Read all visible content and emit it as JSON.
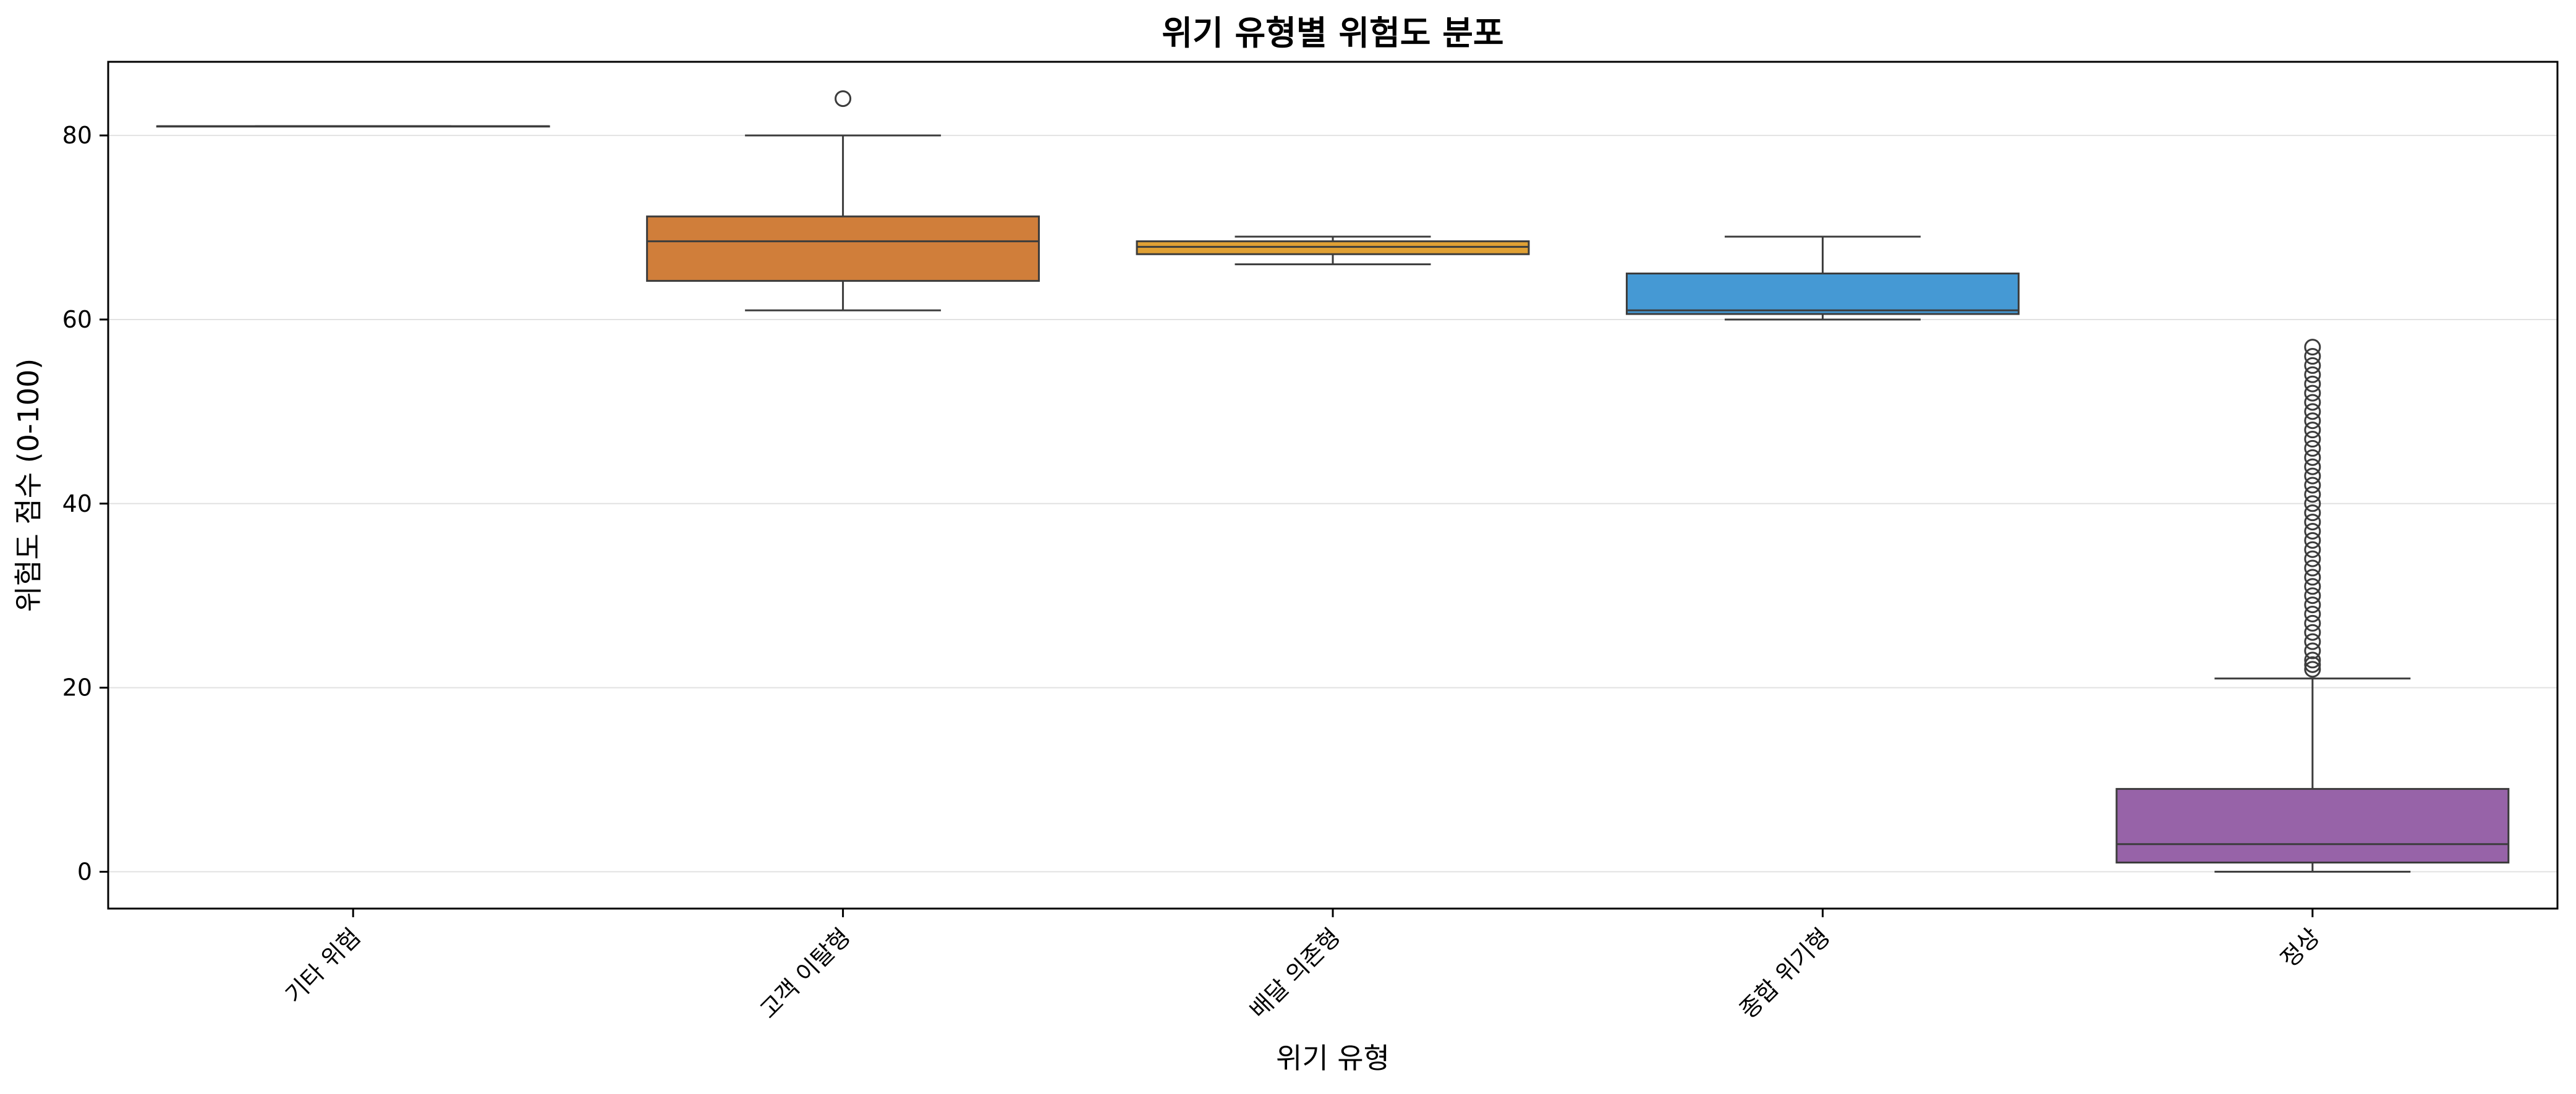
{
  "chart_data": {
    "type": "box",
    "title": "위기 유형별 위험도 분포",
    "xlabel": "위기 유형",
    "ylabel": "위험도 점수 (0-100)",
    "ylim": [
      -4,
      88
    ],
    "yticks": [
      0,
      20,
      40,
      60,
      80
    ],
    "grid": "y",
    "categories": [
      "기타 위험",
      "고객 이탈형",
      "배달 의존형",
      "종합 위기형",
      "정상"
    ],
    "colors": [
      "#95a5a6",
      "#d07e3a",
      "#e0a034",
      "#4599d4",
      "#9763a8"
    ],
    "boxes": [
      {
        "whislo": 81,
        "q1": 81,
        "med": 81,
        "q3": 81,
        "whishi": 81,
        "fliers": []
      },
      {
        "whislo": 61,
        "q1": 64.2,
        "med": 68.5,
        "q3": 71.2,
        "whishi": 80,
        "fliers": [
          84
        ]
      },
      {
        "whislo": 66,
        "q1": 67.1,
        "med": 67.9,
        "q3": 68.5,
        "whishi": 69,
        "fliers": []
      },
      {
        "whislo": 60,
        "q1": 60.6,
        "med": 61,
        "q3": 65,
        "whishi": 69,
        "fliers": []
      },
      {
        "whislo": 0,
        "q1": 1,
        "med": 3,
        "q3": 9,
        "whishi": 21,
        "fliers": [
          22,
          22.5,
          23,
          24,
          25,
          26,
          27,
          28,
          29,
          30,
          31,
          32,
          33,
          34,
          35,
          36,
          37,
          38,
          39,
          40,
          41,
          42,
          43,
          44,
          45,
          46,
          47,
          48,
          49,
          50,
          51,
          52,
          53,
          54,
          55,
          56,
          57
        ]
      }
    ]
  }
}
